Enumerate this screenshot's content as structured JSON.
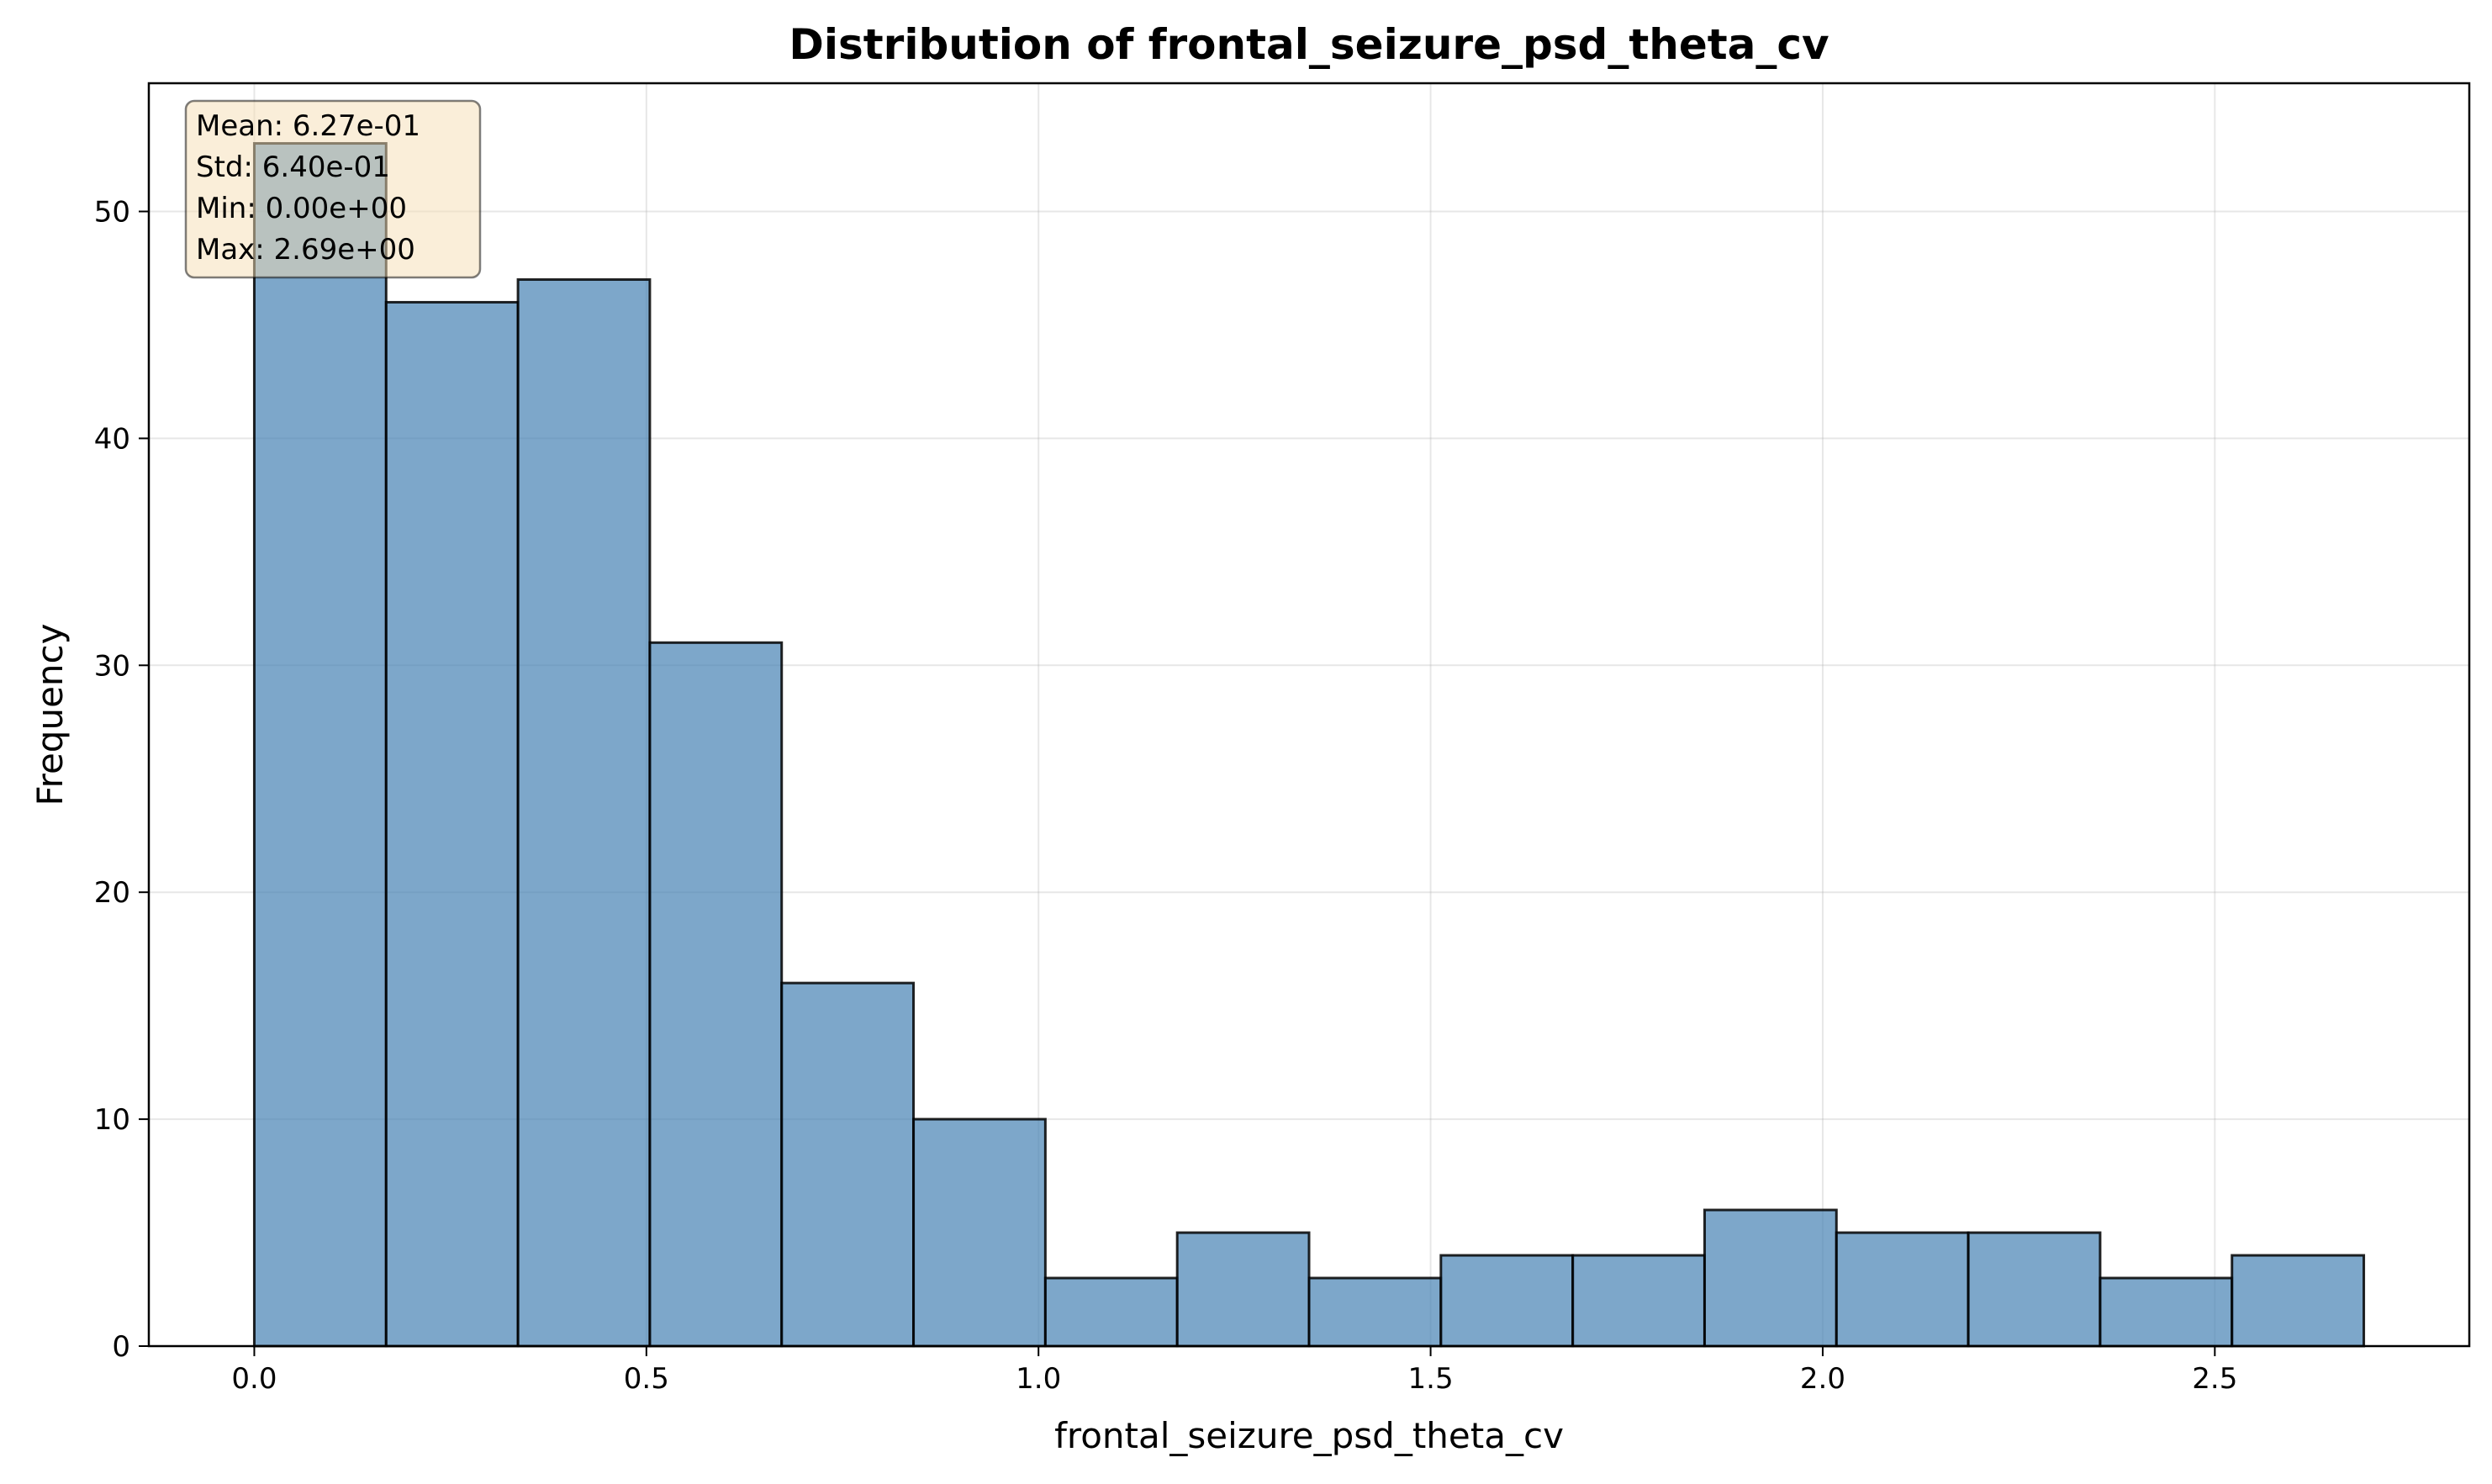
{
  "chart_data": {
    "type": "bar",
    "title": "Distribution of frontal_seizure_psd_theta_cv",
    "xlabel": "frontal_seizure_psd_theta_cv",
    "ylabel": "Frequency",
    "xlim": [
      -0.1345,
      2.8245
    ],
    "ylim": [
      0,
      55.65
    ],
    "xticks": [
      "0.0",
      "0.5",
      "1.0",
      "1.5",
      "2.0",
      "2.5"
    ],
    "xtick_values": [
      0.0,
      0.5,
      1.0,
      1.5,
      2.0,
      2.5
    ],
    "yticks": [
      "0",
      "10",
      "20",
      "30",
      "40",
      "50"
    ],
    "ytick_values": [
      0,
      10,
      20,
      30,
      40,
      50
    ],
    "bin_edges": [
      0.0,
      0.168125,
      0.33625,
      0.504375,
      0.6725,
      0.840625,
      1.00875,
      1.176875,
      1.345,
      1.513125,
      1.68125,
      1.849375,
      2.0175,
      2.185625,
      2.35375,
      2.521875,
      2.69
    ],
    "values": [
      53,
      46,
      47,
      31,
      16,
      10,
      3,
      5,
      3,
      4,
      4,
      6,
      5,
      5,
      3,
      4
    ],
    "grid": true,
    "bar_color": "#4682b4",
    "bar_edge_color": "#000000",
    "stats": [
      "Mean: 6.27e-01",
      "Std: 6.40e-01",
      "Min: 0.00e+00",
      "Max: 2.69e+00"
    ],
    "stats_box_color": "#f5deb3",
    "stats_box_position": "top-left"
  }
}
